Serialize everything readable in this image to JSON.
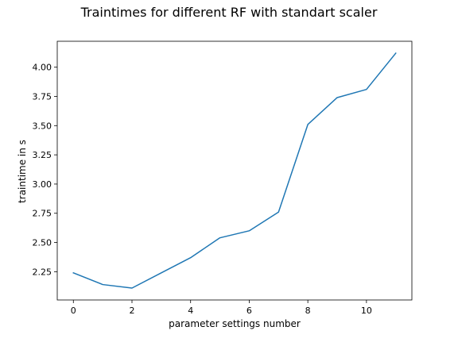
{
  "chart_data": {
    "type": "line",
    "title": "Traintimes for different RF with standart scaler",
    "xlabel": "parameter settings number",
    "ylabel": "traintime in s",
    "x": [
      0,
      1,
      2,
      3,
      4,
      5,
      6,
      7,
      8,
      9,
      10,
      11
    ],
    "series": [
      {
        "values": [
          2.24,
          2.14,
          2.11,
          2.24,
          2.37,
          2.54,
          2.6,
          2.76,
          3.51,
          3.74,
          3.81,
          4.12
        ],
        "color": "#1f77b4"
      }
    ],
    "xlim": [
      -0.55,
      11.55
    ],
    "ylim": [
      2.008,
      4.222
    ],
    "xticks": [
      0,
      2,
      4,
      6,
      8,
      10
    ],
    "xtick_labels": [
      "0",
      "2",
      "4",
      "6",
      "8",
      "10"
    ],
    "yticks": [
      2.25,
      2.5,
      2.75,
      3.0,
      3.25,
      3.5,
      3.75,
      4.0
    ],
    "ytick_labels": [
      "2.25",
      "2.50",
      "2.75",
      "3.00",
      "3.25",
      "3.50",
      "3.75",
      "4.00"
    ],
    "grid": false,
    "legend": "none"
  }
}
